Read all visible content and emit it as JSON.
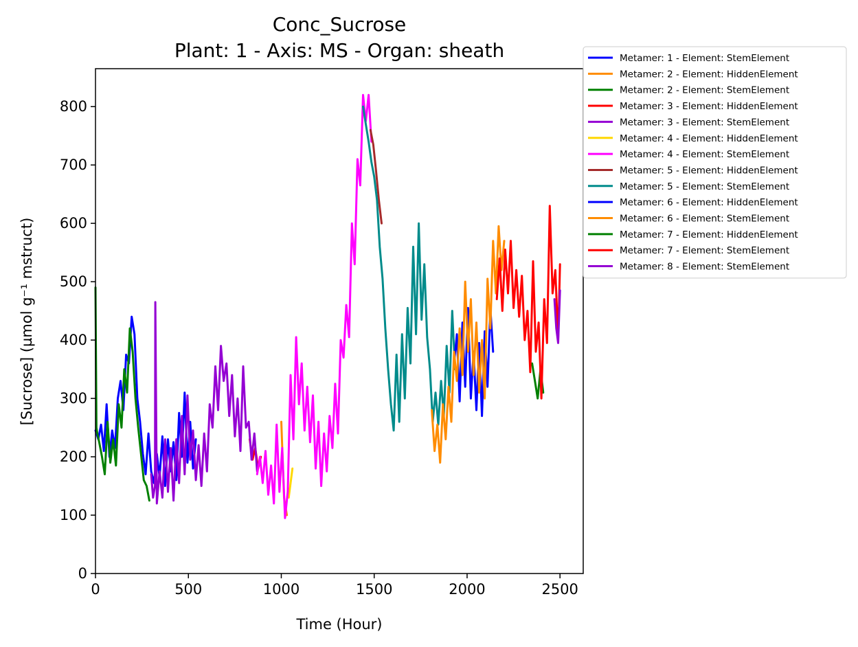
{
  "chart_data": {
    "type": "line",
    "title": "Conc_Sucrose",
    "subtitle": "Plant: 1 - Axis: MS - Organ: sheath",
    "xlabel": "Time (Hour)",
    "ylabel": "[Sucrose] (µmol g⁻¹ mstruct)",
    "xlim": [
      0,
      2625
    ],
    "ylim": [
      0,
      865
    ],
    "xticks": [
      0,
      500,
      1000,
      1500,
      2000,
      2500
    ],
    "yticks": [
      0,
      100,
      200,
      300,
      400,
      500,
      600,
      700,
      800
    ],
    "grid": false,
    "legend_position": "outside top-right",
    "series": [
      {
        "name": "Metamer: 1 - Element: StemElement",
        "color": "#0000ff",
        "x": [
          0,
          15,
          30,
          45,
          60,
          75,
          90,
          105,
          120,
          135,
          150,
          165,
          180,
          195,
          210,
          225,
          240,
          255,
          270,
          285,
          300,
          315,
          330,
          345,
          360,
          375,
          390,
          405,
          420,
          435,
          450,
          465,
          480,
          495,
          510,
          525,
          540
        ],
        "y": [
          245,
          230,
          255,
          210,
          290,
          200,
          245,
          215,
          300,
          330,
          280,
          375,
          360,
          440,
          410,
          300,
          260,
          205,
          170,
          240,
          175,
          155,
          205,
          165,
          235,
          150,
          230,
          175,
          225,
          160,
          275,
          200,
          310,
          190,
          260,
          180,
          230
        ]
      },
      {
        "name": "Metamer: 2 - Element: HiddenElement",
        "color": "#ff8c00",
        "x": [
          1000,
          1015,
          1030
        ],
        "y": [
          260,
          130,
          100
        ]
      },
      {
        "name": "Metamer: 2 - Element: StemElement",
        "color": "#008000",
        "x": [
          0,
          5,
          10,
          20,
          35,
          50,
          65,
          80,
          95,
          110,
          125,
          140,
          155,
          170,
          185,
          200,
          215,
          230,
          245,
          260,
          275,
          290
        ],
        "y": [
          490,
          250,
          240,
          225,
          200,
          170,
          260,
          190,
          230,
          185,
          290,
          250,
          350,
          310,
          420,
          380,
          300,
          250,
          205,
          160,
          150,
          125
        ]
      },
      {
        "name": "Metamer: 3 - Element: HiddenElement",
        "color": "#ff0000",
        "x": [
          830,
          845,
          860,
          875,
          890
        ],
        "y": [
          230,
          195,
          215,
          180,
          200
        ]
      },
      {
        "name": "Metamer: 3 - Element: StemElement",
        "color": "#9400d3",
        "x": [
          300,
          310,
          320,
          322,
          330,
          345,
          360,
          375,
          390,
          405,
          420,
          435,
          450,
          465,
          480,
          495,
          510,
          525,
          540,
          555,
          570,
          585,
          600,
          615,
          630,
          645,
          660,
          675,
          690,
          705,
          720,
          735,
          750,
          765,
          780,
          795,
          810,
          825,
          840,
          855,
          870
        ],
        "y": [
          170,
          130,
          150,
          465,
          120,
          175,
          130,
          230,
          140,
          215,
          125,
          230,
          155,
          270,
          170,
          305,
          195,
          245,
          160,
          220,
          150,
          240,
          175,
          290,
          250,
          355,
          280,
          390,
          330,
          360,
          270,
          340,
          235,
          300,
          210,
          355,
          250,
          260,
          195,
          240,
          175
        ]
      },
      {
        "name": "Metamer: 4 - Element: HiddenElement",
        "color": "#ffd700",
        "x": [
          1040,
          1060
        ],
        "y": [
          130,
          180
        ]
      },
      {
        "name": "Metamer: 4 - Element: StemElement",
        "color": "#ff00ff",
        "x": [
          870,
          885,
          900,
          915,
          930,
          945,
          960,
          975,
          990,
          1005,
          1020,
          1035,
          1050,
          1065,
          1080,
          1095,
          1110,
          1125,
          1140,
          1155,
          1170,
          1185,
          1200,
          1215,
          1230,
          1245,
          1260,
          1275,
          1290,
          1305,
          1320,
          1335,
          1350,
          1365,
          1380,
          1395,
          1410,
          1425,
          1440,
          1455,
          1470,
          1485
        ],
        "y": [
          170,
          200,
          155,
          210,
          135,
          185,
          120,
          255,
          140,
          215,
          95,
          140,
          340,
          230,
          405,
          290,
          360,
          245,
          320,
          225,
          305,
          180,
          260,
          150,
          240,
          175,
          270,
          215,
          325,
          240,
          400,
          370,
          460,
          405,
          600,
          530,
          710,
          665,
          820,
          775,
          820,
          740
        ]
      },
      {
        "name": "Metamer: 5 - Element: HiddenElement",
        "color": "#a52a2a",
        "x": [
          1480,
          1495,
          1510,
          1525,
          1540
        ],
        "y": [
          760,
          735,
          690,
          640,
          600
        ]
      },
      {
        "name": "Metamer: 5 - Element: StemElement",
        "color": "#008b8b",
        "x": [
          1440,
          1455,
          1470,
          1485,
          1500,
          1515,
          1530,
          1545,
          1560,
          1575,
          1590,
          1605,
          1620,
          1635,
          1650,
          1665,
          1680,
          1695,
          1710,
          1725,
          1740,
          1755,
          1770,
          1785,
          1800,
          1815,
          1830,
          1845,
          1860,
          1875,
          1890,
          1905,
          1920,
          1935
        ],
        "y": [
          800,
          770,
          740,
          705,
          680,
          640,
          560,
          505,
          420,
          350,
          290,
          245,
          375,
          260,
          410,
          300,
          455,
          360,
          560,
          410,
          600,
          435,
          530,
          405,
          350,
          260,
          310,
          255,
          330,
          270,
          390,
          310,
          450,
          350
        ]
      },
      {
        "name": "Metamer: 6 - Element: HiddenElement",
        "color": "#0000ff",
        "x": [
          1930,
          1945,
          1960,
          1975,
          1990,
          2005,
          2020,
          2035,
          2050,
          2065,
          2080,
          2095,
          2110,
          2125,
          2140
        ],
        "y": [
          360,
          410,
          295,
          430,
          320,
          455,
          300,
          380,
          280,
          395,
          270,
          415,
          320,
          455,
          380
        ]
      },
      {
        "name": "Metamer: 6 - Element: StemElement",
        "color": "#ff8c00",
        "x": [
          1810,
          1825,
          1840,
          1855,
          1870,
          1885,
          1900,
          1915,
          1930,
          1945,
          1960,
          1975,
          1990,
          2005,
          2020,
          2035,
          2050,
          2065,
          2080,
          2095,
          2110,
          2125,
          2140,
          2155,
          2170,
          2185,
          2200
        ],
        "y": [
          280,
          210,
          255,
          190,
          290,
          230,
          320,
          260,
          380,
          330,
          420,
          340,
          500,
          380,
          470,
          340,
          430,
          310,
          400,
          300,
          505,
          420,
          570,
          480,
          595,
          520,
          570
        ]
      },
      {
        "name": "Metamer: 7 - Element: HiddenElement",
        "color": "#008000",
        "x": [
          2350,
          2365,
          2380,
          2395,
          2410
        ],
        "y": [
          360,
          330,
          300,
          350,
          310
        ]
      },
      {
        "name": "Metamer: 7 - Element: StemElement",
        "color": "#ff0000",
        "x": [
          2160,
          2175,
          2190,
          2205,
          2220,
          2235,
          2250,
          2265,
          2280,
          2295,
          2310,
          2325,
          2340,
          2355,
          2370,
          2385,
          2400,
          2415,
          2430,
          2445,
          2460,
          2475,
          2490,
          2500
        ],
        "y": [
          470,
          540,
          450,
          555,
          480,
          570,
          455,
          520,
          440,
          510,
          400,
          450,
          345,
          535,
          380,
          430,
          300,
          470,
          395,
          630,
          480,
          520,
          400,
          530
        ]
      },
      {
        "name": "Metamer: 8 - Element: StemElement",
        "color": "#9400d3",
        "x": [
          2470,
          2480,
          2490,
          2500
        ],
        "y": [
          470,
          420,
          395,
          485
        ]
      }
    ]
  }
}
